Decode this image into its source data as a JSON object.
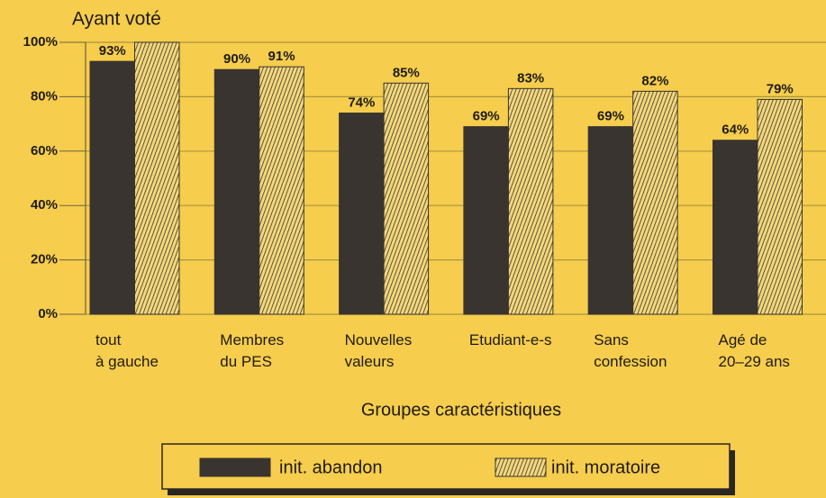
{
  "chart_data": {
    "type": "bar",
    "title": "Ayant voté",
    "x_label": "Groupes caractéristiques",
    "categories": [
      "tout\nà gauche",
      "Membres\ndu PES",
      "Nouvelles\nvaleurs",
      "Etudiant-e-s",
      "Sans\nconfession",
      "Agé de\n20–29 ans"
    ],
    "series": [
      {
        "name": "init. abandon",
        "color": "#3a3430",
        "values": [
          93,
          90,
          74,
          69,
          69,
          64
        ],
        "value_labels": [
          "93%",
          "90%",
          "74%",
          "69%",
          "69%",
          "64%"
        ]
      },
      {
        "name": "init. moratoire",
        "color": "#3a3430",
        "hatched": true,
        "values": [
          100,
          91,
          85,
          83,
          82,
          79
        ],
        "value_labels": [
          null,
          "91%",
          "85%",
          "83%",
          "82%",
          "79%"
        ]
      }
    ],
    "ylim": [
      0,
      100
    ],
    "yticks": [
      {
        "value": 0,
        "label": "0%"
      },
      {
        "value": 20,
        "label": "20%"
      },
      {
        "value": 40,
        "label": "40%"
      },
      {
        "value": 60,
        "label": "60%"
      },
      {
        "value": 80,
        "label": "80%"
      },
      {
        "value": 100,
        "label": "100%"
      }
    ],
    "grid": true
  }
}
